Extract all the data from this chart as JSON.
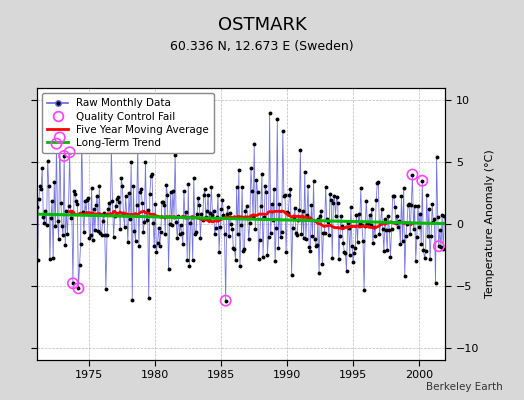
{
  "title": "OSTMARK",
  "subtitle": "60.336 N, 12.673 E (Sweden)",
  "ylabel": "Temperature Anomaly (°C)",
  "xlabel_bottom": "Berkeley Earth",
  "ylim": [
    -11,
    11
  ],
  "xlim": [
    1971.0,
    2002.0
  ],
  "yticks": [
    -10,
    -5,
    0,
    5,
    10
  ],
  "xticks": [
    1975,
    1980,
    1985,
    1990,
    1995,
    2000
  ],
  "background_color": "#d8d8d8",
  "plot_bg_color": "#ffffff",
  "raw_line_color": "#6666dd",
  "raw_marker_color": "#000000",
  "qc_fail_color": "#ff44ff",
  "moving_avg_color": "#ff0000",
  "trend_color": "#00bb00",
  "title_fontsize": 13,
  "subtitle_fontsize": 9,
  "start_year": 1971,
  "end_year": 2002,
  "seed": 17
}
